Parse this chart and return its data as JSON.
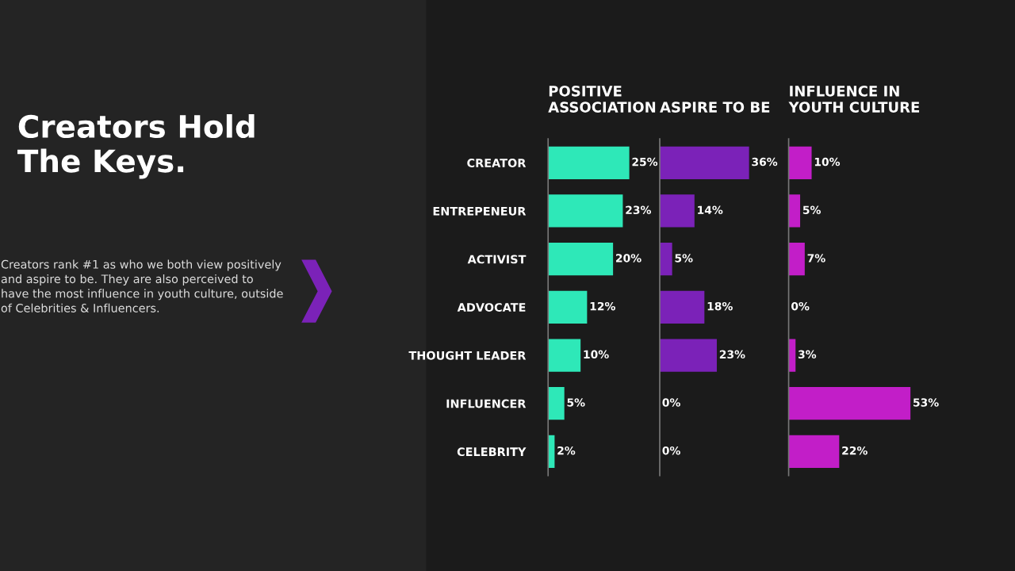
{
  "chart_data": [
    {
      "type": "other",
      "title": "Creators Hold The Keys.",
      "annotations": [
        "Creators rank #1 as who we both view positively and aspire to be. They are also perceived to have the most influence in youth culture, outside of Celebrities & Influencers."
      ]
    },
    {
      "type": "bar",
      "orientation": "horizontal",
      "title": "POSITIVE\nASSOCIATION",
      "categories": [
        "CREATOR",
        "ENTREPENEUR",
        "ACTIVIST",
        "ADVOCATE",
        "THOUGHT LEADER",
        "INFLUENCER",
        "CELEBRITY"
      ],
      "values": [
        25,
        23,
        20,
        12,
        10,
        5,
        2
      ],
      "value_labels": [
        "25%",
        "23%",
        "20%",
        "12%",
        "10%",
        "5%",
        "2%"
      ],
      "color": "#2ee8b8"
    },
    {
      "type": "bar",
      "orientation": "horizontal",
      "title": "ASPIRE TO BE",
      "categories": [
        null,
        null,
        null,
        null,
        null,
        null,
        null
      ],
      "values": [
        36,
        14,
        5,
        18,
        23,
        0,
        0
      ],
      "value_labels": [
        "36%",
        "14%",
        "5%",
        "18%",
        "23%",
        "0%",
        "0%"
      ],
      "color": "#7b22b8"
    },
    {
      "type": "bar",
      "orientation": "horizontal",
      "title": "INFLUENCE IN\nYOUTH CULTURE",
      "categories": [
        null,
        null,
        null,
        null,
        null,
        null,
        null
      ],
      "values": [
        10,
        5,
        7,
        0,
        3,
        53,
        22
      ],
      "value_labels": [
        "10%",
        "5%",
        "7%",
        "0%",
        "3%",
        "53%",
        "22%"
      ],
      "color": "#c21ec8"
    }
  ]
}
